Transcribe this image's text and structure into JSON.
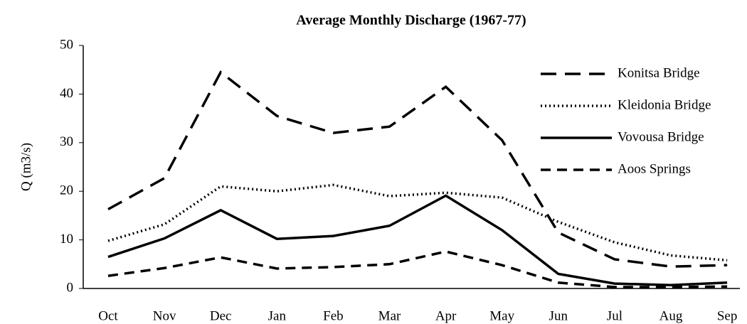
{
  "chart_data": {
    "type": "line",
    "title": "Average Monthly Discharge (1967-77)",
    "y_label": "Q (m3/s)",
    "categories": [
      "Oct",
      "Nov",
      "Dec",
      "Jan",
      "Feb",
      "Mar",
      "Apr",
      "May",
      "Jun",
      "Jul",
      "Aug",
      "Sep"
    ],
    "ylim": [
      0,
      50
    ],
    "yticks": [
      0,
      10,
      20,
      30,
      40,
      50
    ],
    "grid": false,
    "legend": "upper right",
    "series": [
      {
        "name": "Konitsa Bridge",
        "color": "#000000",
        "style": "long-dash",
        "values": [
          16.3,
          22.7,
          44.5,
          35.5,
          32,
          33.3,
          41.5,
          30.5,
          11.5,
          6,
          4.5,
          4.8
        ]
      },
      {
        "name": "Kleidonia Bridge",
        "color": "#000000",
        "style": "dotted",
        "values": [
          9.8,
          13.2,
          21,
          20,
          21.3,
          19,
          19.7,
          18.7,
          13.7,
          9.5,
          6.8,
          5.8
        ]
      },
      {
        "name": "Vovousa Bridge",
        "color": "#000000",
        "style": "solid",
        "values": [
          6.5,
          10.3,
          16.1,
          10.2,
          10.8,
          12.9,
          19.1,
          12,
          3,
          1,
          0.7,
          1.2
        ]
      },
      {
        "name": "Aoos Springs",
        "color": "#000000",
        "style": "dashed",
        "values": [
          2.6,
          4.2,
          6.4,
          4.1,
          4.4,
          5,
          7.6,
          4.8,
          1.2,
          0.3,
          0.3,
          0.4
        ]
      }
    ]
  }
}
